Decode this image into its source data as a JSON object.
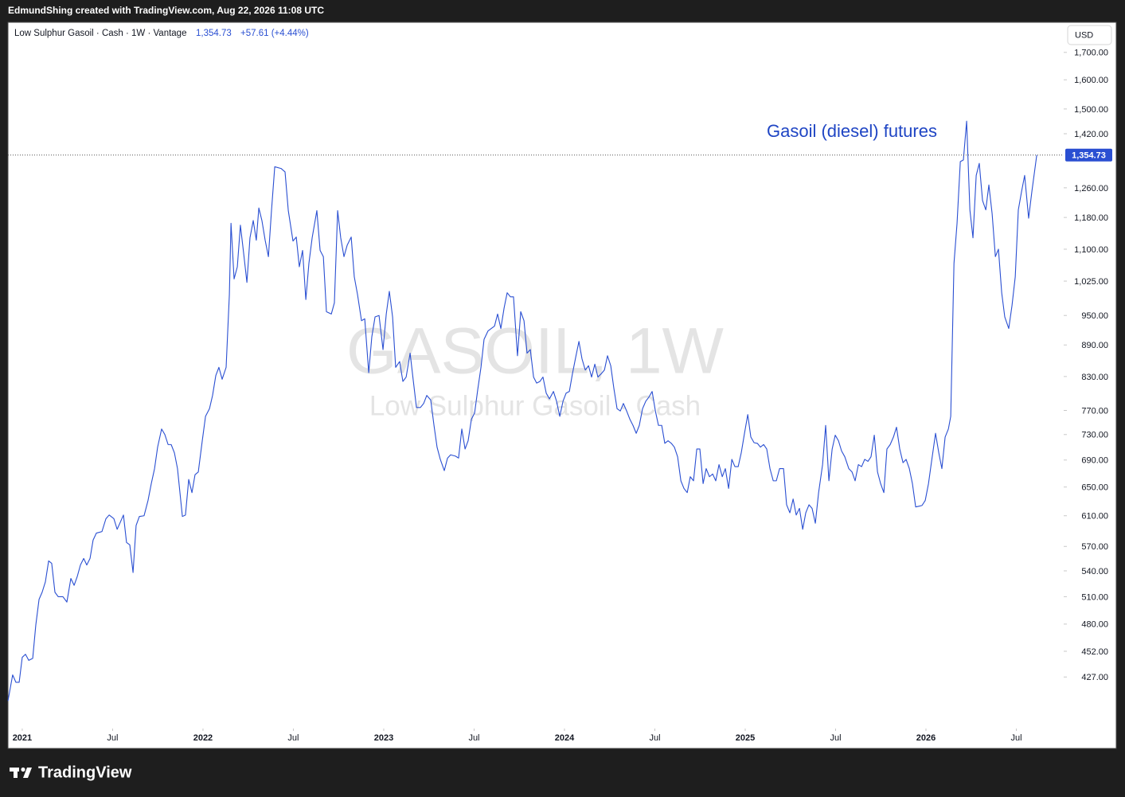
{
  "byline": "EdmundShing created with TradingView.com, Aug 22, 2026 11:08 UTC",
  "footer": "TradingView",
  "currency": "USD",
  "chart_data": {
    "type": "line",
    "symbol": "Low Sulphur Gasoil · Cash · 1W · Vantage",
    "last_price": 1354.73,
    "last_price_label": "1,354.73",
    "change_label": "+57.61 (+4.44%)",
    "watermark": "GASOIL, 1W",
    "watermark_subtitle": "Low Sulphur Gasoil · Cash",
    "annotation": "Gasoil (diesel) futures",
    "color": "#2a4fd2",
    "log_scale": true,
    "grid": false,
    "xlim": [
      2020.921,
      2026.762
    ],
    "ylim": [
      381,
      1817
    ],
    "xticks": [
      {
        "value": 2021,
        "label": "2021"
      },
      {
        "value": 2021.5,
        "label": "Jul"
      },
      {
        "value": 2022,
        "label": "2022"
      },
      {
        "value": 2022.5,
        "label": "Jul"
      },
      {
        "value": 2023,
        "label": "2023"
      },
      {
        "value": 2023.5,
        "label": "Jul"
      },
      {
        "value": 2024,
        "label": "2024"
      },
      {
        "value": 2024.5,
        "label": "Jul"
      },
      {
        "value": 2025,
        "label": "2025"
      },
      {
        "value": 2025.5,
        "label": "Jul"
      },
      {
        "value": 2026,
        "label": "2026"
      },
      {
        "value": 2026.5,
        "label": "Jul"
      }
    ],
    "yticks": [
      {
        "value": 427,
        "label": "427.00"
      },
      {
        "value": 452,
        "label": "452.00"
      },
      {
        "value": 480,
        "label": "480.00"
      },
      {
        "value": 510,
        "label": "510.00"
      },
      {
        "value": 540,
        "label": "540.00"
      },
      {
        "value": 570,
        "label": "570.00"
      },
      {
        "value": 610,
        "label": "610.00"
      },
      {
        "value": 650,
        "label": "650.00"
      },
      {
        "value": 690,
        "label": "690.00"
      },
      {
        "value": 730,
        "label": "730.00"
      },
      {
        "value": 770,
        "label": "770.00"
      },
      {
        "value": 830,
        "label": "830.00"
      },
      {
        "value": 890,
        "label": "890.00"
      },
      {
        "value": 950,
        "label": "950.00"
      },
      {
        "value": 1025,
        "label": "1,025.00"
      },
      {
        "value": 1100,
        "label": "1,100.00"
      },
      {
        "value": 1180,
        "label": "1,180.00"
      },
      {
        "value": 1260,
        "label": "1,260.00"
      },
      {
        "value": 1420,
        "label": "1,420.00"
      },
      {
        "value": 1500,
        "label": "1,500.00"
      },
      {
        "value": 1600,
        "label": "1,600.00"
      },
      {
        "value": 1700,
        "label": "1,700.00"
      }
    ],
    "x": [
      2020.921,
      2020.947,
      2020.965,
      2020.983,
      2021.0,
      2021.018,
      2021.036,
      2021.058,
      2021.075,
      2021.093,
      2021.11,
      2021.128,
      2021.146,
      2021.163,
      2021.181,
      2021.199,
      2021.225,
      2021.247,
      2021.269,
      2021.287,
      2021.304,
      2021.322,
      2021.34,
      2021.357,
      2021.375,
      2021.392,
      2021.41,
      2021.441,
      2021.463,
      2021.481,
      2021.507,
      2021.525,
      2021.542,
      2021.56,
      2021.577,
      2021.595,
      2021.613,
      2021.63,
      2021.648,
      2021.674,
      2021.696,
      2021.714,
      2021.732,
      2021.749,
      2021.771,
      2021.789,
      2021.807,
      2021.824,
      2021.842,
      2021.859,
      2021.886,
      2021.903,
      2021.921,
      2021.939,
      2021.956,
      2021.974,
      2021.996,
      2022.014,
      2022.036,
      2022.053,
      2022.071,
      2022.088,
      2022.106,
      2022.128,
      2022.146,
      2022.155,
      2022.172,
      2022.19,
      2022.207,
      2022.225,
      2022.243,
      2022.26,
      2022.278,
      2022.295,
      2022.309,
      2022.326,
      2022.344,
      2022.362,
      2022.379,
      2022.397,
      2022.432,
      2022.454,
      2022.472,
      2022.498,
      2022.516,
      2022.533,
      2022.551,
      2022.569,
      2022.586,
      2022.604,
      2022.63,
      2022.648,
      2022.666,
      2022.683,
      2022.71,
      2022.727,
      2022.745,
      2022.762,
      2022.78,
      2022.798,
      2022.82,
      2022.837,
      2022.855,
      2022.877,
      2022.895,
      2022.917,
      2022.934,
      2022.952,
      2022.974,
      2022.996,
      2023.014,
      2023.031,
      2023.049,
      2023.066,
      2023.088,
      2023.106,
      2023.124,
      2023.146,
      2023.163,
      2023.181,
      2023.203,
      2023.221,
      2023.238,
      2023.26,
      2023.278,
      2023.295,
      2023.313,
      2023.335,
      2023.353,
      2023.37,
      2023.397,
      2023.414,
      2023.432,
      2023.45,
      2023.467,
      2023.485,
      2023.503,
      2023.52,
      2023.538,
      2023.555,
      2023.577,
      2023.595,
      2023.613,
      2023.63,
      2023.648,
      2023.666,
      2023.683,
      2023.701,
      2023.718,
      2023.74,
      2023.758,
      2023.776,
      2023.793,
      2023.811,
      2023.829,
      2023.846,
      2023.864,
      2023.881,
      2023.899,
      2023.917,
      2023.939,
      2023.956,
      2023.974,
      2023.992,
      2024.009,
      2024.027,
      2024.044,
      2024.062,
      2024.08,
      2024.097,
      2024.115,
      2024.133,
      2024.15,
      2024.168,
      2024.185,
      2024.203,
      2024.221,
      2024.238,
      2024.256,
      2024.273,
      2024.291,
      2024.309,
      2024.326,
      2024.344,
      2024.362,
      2024.379,
      2024.397,
      2024.414,
      2024.432,
      2024.45,
      2024.467,
      2024.485,
      2024.503,
      2024.52,
      2024.538,
      2024.555,
      2024.573,
      2024.591,
      2024.608,
      2024.626,
      2024.644,
      2024.661,
      2024.679,
      2024.696,
      2024.714,
      2024.732,
      2024.749,
      2024.767,
      2024.784,
      2024.802,
      2024.82,
      2024.837,
      2024.855,
      2024.873,
      2024.89,
      2024.908,
      2024.926,
      2024.943,
      2024.961,
      2024.978,
      2024.996,
      2025.014,
      2025.031,
      2025.049,
      2025.067,
      2025.084,
      2025.102,
      2025.119,
      2025.137,
      2025.155,
      2025.172,
      2025.19,
      2025.212,
      2025.229,
      2025.247,
      2025.265,
      2025.282,
      2025.3,
      2025.318,
      2025.335,
      2025.353,
      2025.37,
      2025.388,
      2025.406,
      2025.428,
      2025.445,
      2025.463,
      2025.481,
      2025.498,
      2025.516,
      2025.533,
      2025.551,
      2025.573,
      2025.591,
      2025.608,
      2025.626,
      2025.644,
      2025.661,
      2025.679,
      2025.696,
      2025.714,
      2025.732,
      2025.749,
      2025.767,
      2025.784,
      2025.802,
      2025.82,
      2025.837,
      2025.855,
      2025.873,
      2025.89,
      2025.908,
      2025.925,
      2025.943,
      2025.961,
      2025.978,
      2025.996,
      2026.014,
      2026.031,
      2026.053,
      2026.071,
      2026.088,
      2026.106,
      2026.124,
      2026.137,
      2026.155,
      2026.172,
      2026.19,
      2026.207,
      2026.225,
      2026.243,
      2026.26,
      2026.278,
      2026.295,
      2026.313,
      2026.331,
      2026.348,
      2026.366,
      2026.384,
      2026.401,
      2026.419,
      2026.436,
      2026.458,
      2026.476,
      2026.494,
      2026.511,
      2026.529,
      2026.546,
      2026.568,
      2026.586,
      2026.613
    ],
    "values": [
      405,
      429,
      422,
      422,
      446,
      449,
      443,
      445,
      479,
      507,
      515,
      527,
      552,
      549,
      515,
      510,
      510,
      504,
      531,
      523,
      533,
      547,
      555,
      547,
      555,
      578,
      587,
      589,
      606,
      611,
      606,
      592,
      601,
      611,
      575,
      572,
      538,
      597,
      609,
      610,
      631,
      655,
      677,
      710,
      739,
      730,
      714,
      714,
      701,
      677,
      609,
      611,
      661,
      642,
      668,
      672,
      720,
      760,
      773,
      796,
      832,
      847,
      825,
      847,
      995,
      1165,
      1030,
      1058,
      1160,
      1090,
      1022,
      1128,
      1172,
      1122,
      1205,
      1172,
      1122,
      1082,
      1198,
      1320,
      1315,
      1305,
      1198,
      1120,
      1130,
      1058,
      1097,
      984,
      1066,
      1128,
      1198,
      1097,
      1082,
      958,
      953,
      977,
      1198,
      1128,
      1082,
      1110,
      1130,
      1035,
      995,
      939,
      943,
      837,
      906,
      947,
      950,
      881,
      953,
      1002,
      947,
      847,
      858,
      821,
      829,
      874,
      824,
      775,
      775,
      782,
      796,
      788,
      745,
      710,
      691,
      674,
      693,
      698,
      696,
      693,
      739,
      707,
      720,
      755,
      766,
      806,
      847,
      901,
      918,
      923,
      928,
      953,
      923,
      966,
      999,
      990,
      990,
      869,
      958,
      939,
      874,
      881,
      829,
      818,
      821,
      829,
      800,
      790,
      803,
      786,
      760,
      786,
      800,
      803,
      835,
      866,
      897,
      863,
      842,
      850,
      829,
      853,
      829,
      835,
      842,
      869,
      850,
      809,
      773,
      769,
      782,
      769,
      755,
      745,
      732,
      745,
      773,
      786,
      793,
      803,
      769,
      745,
      745,
      716,
      720,
      716,
      710,
      695,
      659,
      648,
      642,
      665,
      659,
      707,
      707,
      655,
      677,
      665,
      669,
      659,
      683,
      665,
      677,
      648,
      691,
      680,
      680,
      701,
      732,
      763,
      726,
      717,
      716,
      710,
      714,
      707,
      677,
      659,
      659,
      677,
      677,
      625,
      614,
      633,
      611,
      620,
      592,
      614,
      625,
      620,
      600,
      642,
      683,
      745,
      659,
      707,
      729,
      720,
      704,
      695,
      677,
      672,
      659,
      683,
      680,
      691,
      688,
      695,
      729,
      672,
      655,
      642,
      707,
      714,
      726,
      742,
      707,
      686,
      691,
      677,
      655,
      622,
      623,
      624,
      631,
      655,
      688,
      732,
      701,
      677,
      726,
      739,
      760,
      1066,
      1165,
      1335,
      1340,
      1460,
      1200,
      1128,
      1295,
      1330,
      1225,
      1200,
      1268,
      1190,
      1082,
      1100,
      999,
      947,
      923,
      971,
      1035,
      1200,
      1250,
      1295,
      1178,
      1250,
      1354.73
    ]
  }
}
